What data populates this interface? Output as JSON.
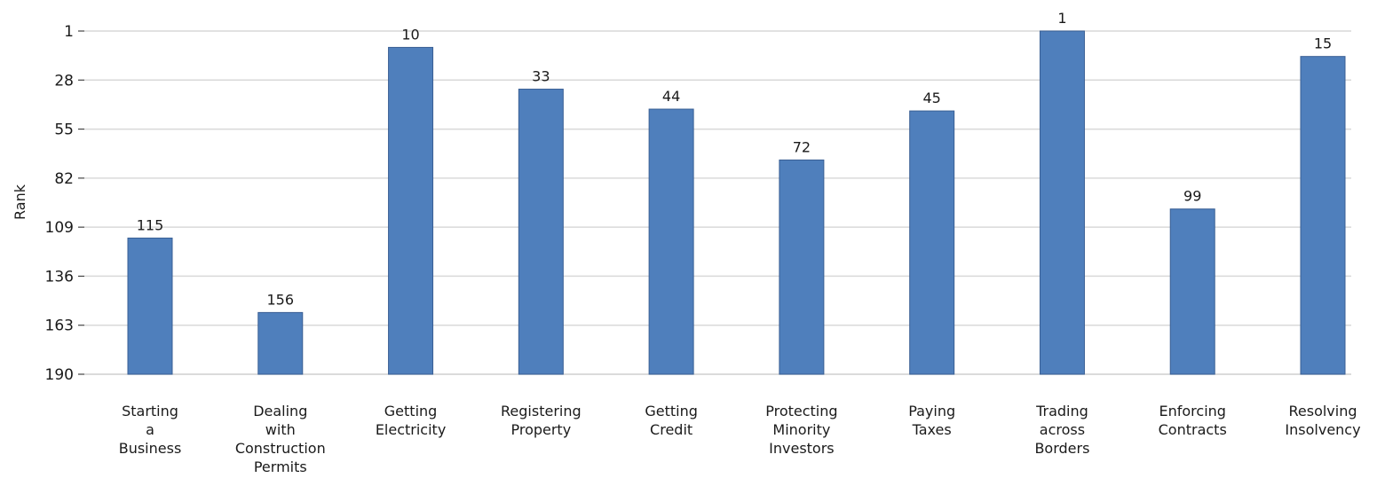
{
  "chart_data": {
    "type": "bar",
    "title": "",
    "xlabel": "",
    "ylabel": "Rank",
    "ylim": [
      190,
      1
    ],
    "y_inverted": true,
    "yticks": [
      1,
      28,
      55,
      82,
      109,
      136,
      163,
      190
    ],
    "grid": true,
    "bar_color": "#4f7fbc",
    "categories": [
      [
        "Starting",
        "a",
        "Business"
      ],
      [
        "Dealing",
        "with",
        "Construction",
        "Permits"
      ],
      [
        "Getting",
        "Electricity"
      ],
      [
        "Registering",
        "Property"
      ],
      [
        "Getting",
        "Credit"
      ],
      [
        "Protecting",
        "Minority",
        "Investors"
      ],
      [
        "Paying",
        "Taxes"
      ],
      [
        "Trading",
        "across",
        "Borders"
      ],
      [
        "Enforcing",
        "Contracts"
      ],
      [
        "Resolving",
        "Insolvency"
      ]
    ],
    "values": [
      115,
      156,
      10,
      33,
      44,
      72,
      45,
      1,
      99,
      15
    ]
  }
}
